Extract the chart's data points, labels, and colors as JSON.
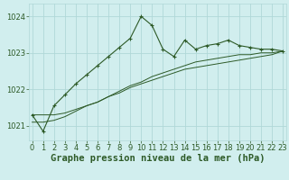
{
  "background_color": "#d1eeee",
  "grid_color": "#b0d8d8",
  "line_color": "#2d5a27",
  "xlabel": "Graphe pression niveau de la mer (hPa)",
  "xlabel_fontsize": 7.5,
  "tick_fontsize": 6.0,
  "ylim": [
    1020.6,
    1024.35
  ],
  "xlim": [
    -0.3,
    23.3
  ],
  "yticks": [
    1021,
    1022,
    1023,
    1024
  ],
  "xticks": [
    0,
    1,
    2,
    3,
    4,
    5,
    6,
    7,
    8,
    9,
    10,
    11,
    12,
    13,
    14,
    15,
    16,
    17,
    18,
    19,
    20,
    21,
    22,
    23
  ],
  "series1_x": [
    0,
    1,
    2,
    3,
    4,
    5,
    6,
    7,
    8,
    9,
    10,
    11,
    12,
    13,
    14,
    15,
    16,
    17,
    18,
    19,
    20,
    21,
    22,
    23
  ],
  "series1_y": [
    1021.3,
    1020.85,
    1021.55,
    1021.85,
    1022.15,
    1022.4,
    1022.65,
    1022.9,
    1023.15,
    1023.4,
    1024.0,
    1023.75,
    1023.1,
    1022.9,
    1023.35,
    1023.1,
    1023.2,
    1023.25,
    1023.35,
    1023.2,
    1023.15,
    1023.1,
    1023.1,
    1023.05
  ],
  "series2_x": [
    0,
    1,
    2,
    3,
    4,
    5,
    6,
    7,
    8,
    9,
    10,
    11,
    12,
    13,
    14,
    15,
    16,
    17,
    18,
    19,
    20,
    21,
    22,
    23
  ],
  "series2_y": [
    1021.1,
    1021.1,
    1021.15,
    1021.25,
    1021.4,
    1021.55,
    1021.65,
    1021.8,
    1021.95,
    1022.1,
    1022.2,
    1022.35,
    1022.45,
    1022.55,
    1022.65,
    1022.75,
    1022.8,
    1022.85,
    1022.9,
    1022.95,
    1022.95,
    1023.0,
    1023.0,
    1023.05
  ],
  "series3_x": [
    0,
    1,
    2,
    3,
    4,
    5,
    6,
    7,
    8,
    9,
    10,
    11,
    12,
    13,
    14,
    15,
    16,
    17,
    18,
    19,
    20,
    21,
    22,
    23
  ],
  "series3_y": [
    1021.3,
    1021.3,
    1021.3,
    1021.35,
    1021.45,
    1021.55,
    1021.65,
    1021.8,
    1021.9,
    1022.05,
    1022.15,
    1022.25,
    1022.35,
    1022.45,
    1022.55,
    1022.6,
    1022.65,
    1022.7,
    1022.75,
    1022.8,
    1022.85,
    1022.9,
    1022.95,
    1023.05
  ]
}
